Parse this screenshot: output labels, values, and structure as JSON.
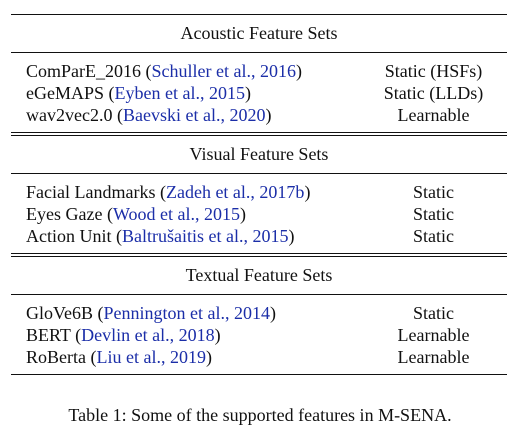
{
  "sections": [
    {
      "title": "Acoustic Feature Sets",
      "rows": [
        {
          "name": "ComParE_2016",
          "cite": "Schuller et al., 2016",
          "type": "Static (HSFs)"
        },
        {
          "name": "eGeMAPS",
          "cite": "Eyben et al., 2015",
          "type": "Static (LLDs)"
        },
        {
          "name": "wav2vec2.0",
          "cite": "Baevski et al., 2020",
          "type": "Learnable"
        }
      ]
    },
    {
      "title": "Visual Feature Sets",
      "rows": [
        {
          "name": "Facial Landmarks",
          "cite": "Zadeh et al., 2017b",
          "type": "Static"
        },
        {
          "name": "Eyes Gaze",
          "cite": "Wood et al., 2015",
          "type": "Static"
        },
        {
          "name": "Action Unit",
          "cite": "Baltrušaitis et al., 2015",
          "type": "Static"
        }
      ]
    },
    {
      "title": "Textual Feature Sets",
      "rows": [
        {
          "name": "GloVe6B",
          "cite": "Pennington et al., 2014",
          "type": "Static"
        },
        {
          "name": "BERT",
          "cite": "Devlin et al., 2018",
          "type": "Learnable"
        },
        {
          "name": "RoBerta",
          "cite": "Liu et al., 2019",
          "type": "Learnable"
        }
      ]
    }
  ],
  "caption": "Table 1: Some of the supported features in M-SENA.",
  "colors": {
    "citation": "#1b2ea8",
    "text": "#111111"
  }
}
